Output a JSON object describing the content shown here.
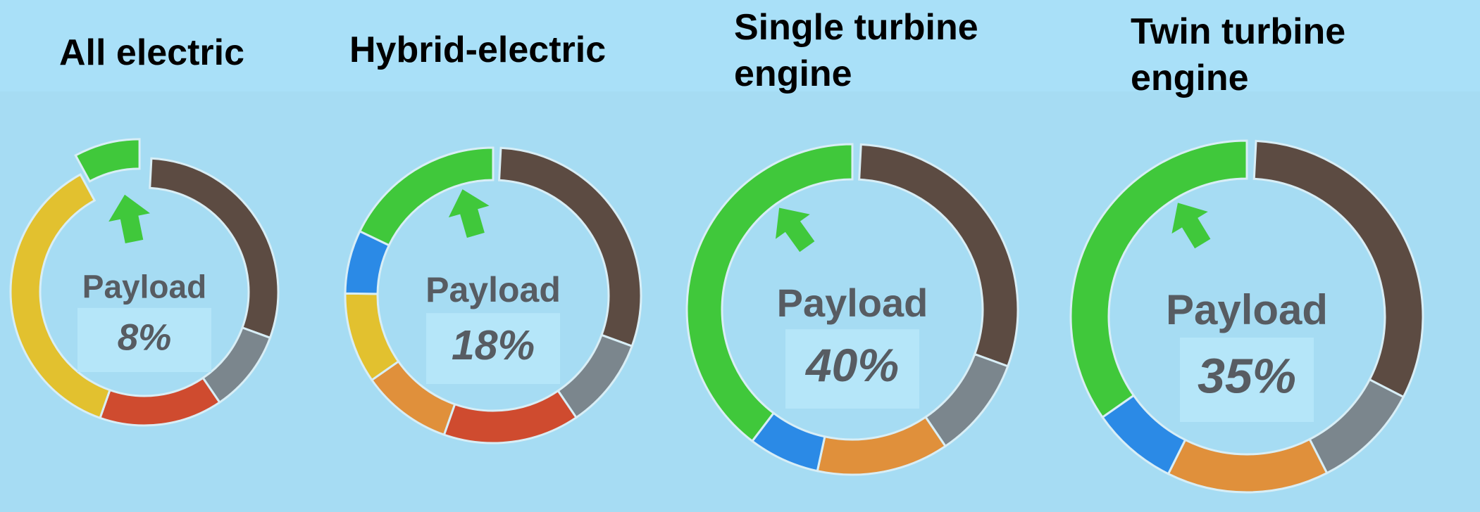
{
  "chart_data": [
    {
      "type": "donut",
      "title": "All electric",
      "center_label": "Payload",
      "values": [
        30,
        10,
        15,
        37,
        8
      ],
      "value_labels": [
        null,
        null,
        null,
        null,
        "8%"
      ],
      "colors": [
        "#5c4b42",
        "#7b868d",
        "#cf4b2f",
        "#e2c12f",
        "#40c83b"
      ]
    },
    {
      "type": "donut",
      "title": "Hybrid-electric",
      "center_label": "Payload",
      "values": [
        30,
        10,
        15,
        10,
        10,
        7,
        18
      ],
      "value_labels": [
        null,
        null,
        null,
        null,
        null,
        null,
        "18%"
      ],
      "colors": [
        "#5c4b42",
        "#7b868d",
        "#cf4b2f",
        "#e0903b",
        "#e2c12f",
        "#2b8ae6",
        "#40c83b"
      ]
    },
    {
      "type": "donut",
      "title": "Single turbine engine",
      "center_label": "Payload",
      "values": [
        30,
        10,
        13,
        7,
        40
      ],
      "value_labels": [
        null,
        null,
        null,
        null,
        "40%"
      ],
      "colors": [
        "#5c4b42",
        "#7b868d",
        "#e0903b",
        "#2b8ae6",
        "#40c83b"
      ]
    },
    {
      "type": "donut",
      "title": "Twin turbine engine",
      "center_label": "Payload",
      "values": [
        32,
        10,
        15,
        8,
        35
      ],
      "value_labels": [
        null,
        null,
        null,
        null,
        "35%"
      ],
      "colors": [
        "#5c4b42",
        "#7b868d",
        "#e0903b",
        "#2b8ae6",
        "#40c83b"
      ]
    }
  ]
}
